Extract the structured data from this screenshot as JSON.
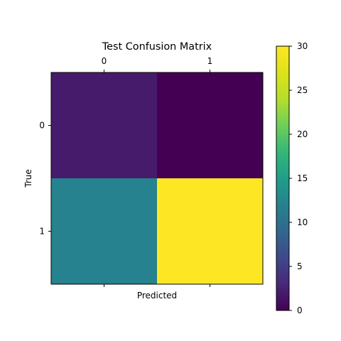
{
  "chart_data": {
    "type": "heatmap",
    "title": "Test Confusion Matrix",
    "xlabel": "Predicted",
    "ylabel": "True",
    "x_categories": [
      "0",
      "1"
    ],
    "y_categories": [
      "0",
      "1"
    ],
    "values": [
      [
        2,
        0
      ],
      [
        12,
        30
      ]
    ],
    "colormap": "viridis",
    "color_range": [
      0,
      30
    ],
    "colorbar_ticks": [
      "0",
      "5",
      "10",
      "15",
      "20",
      "25",
      "30"
    ],
    "x_tick_position": "top",
    "grid": false
  }
}
